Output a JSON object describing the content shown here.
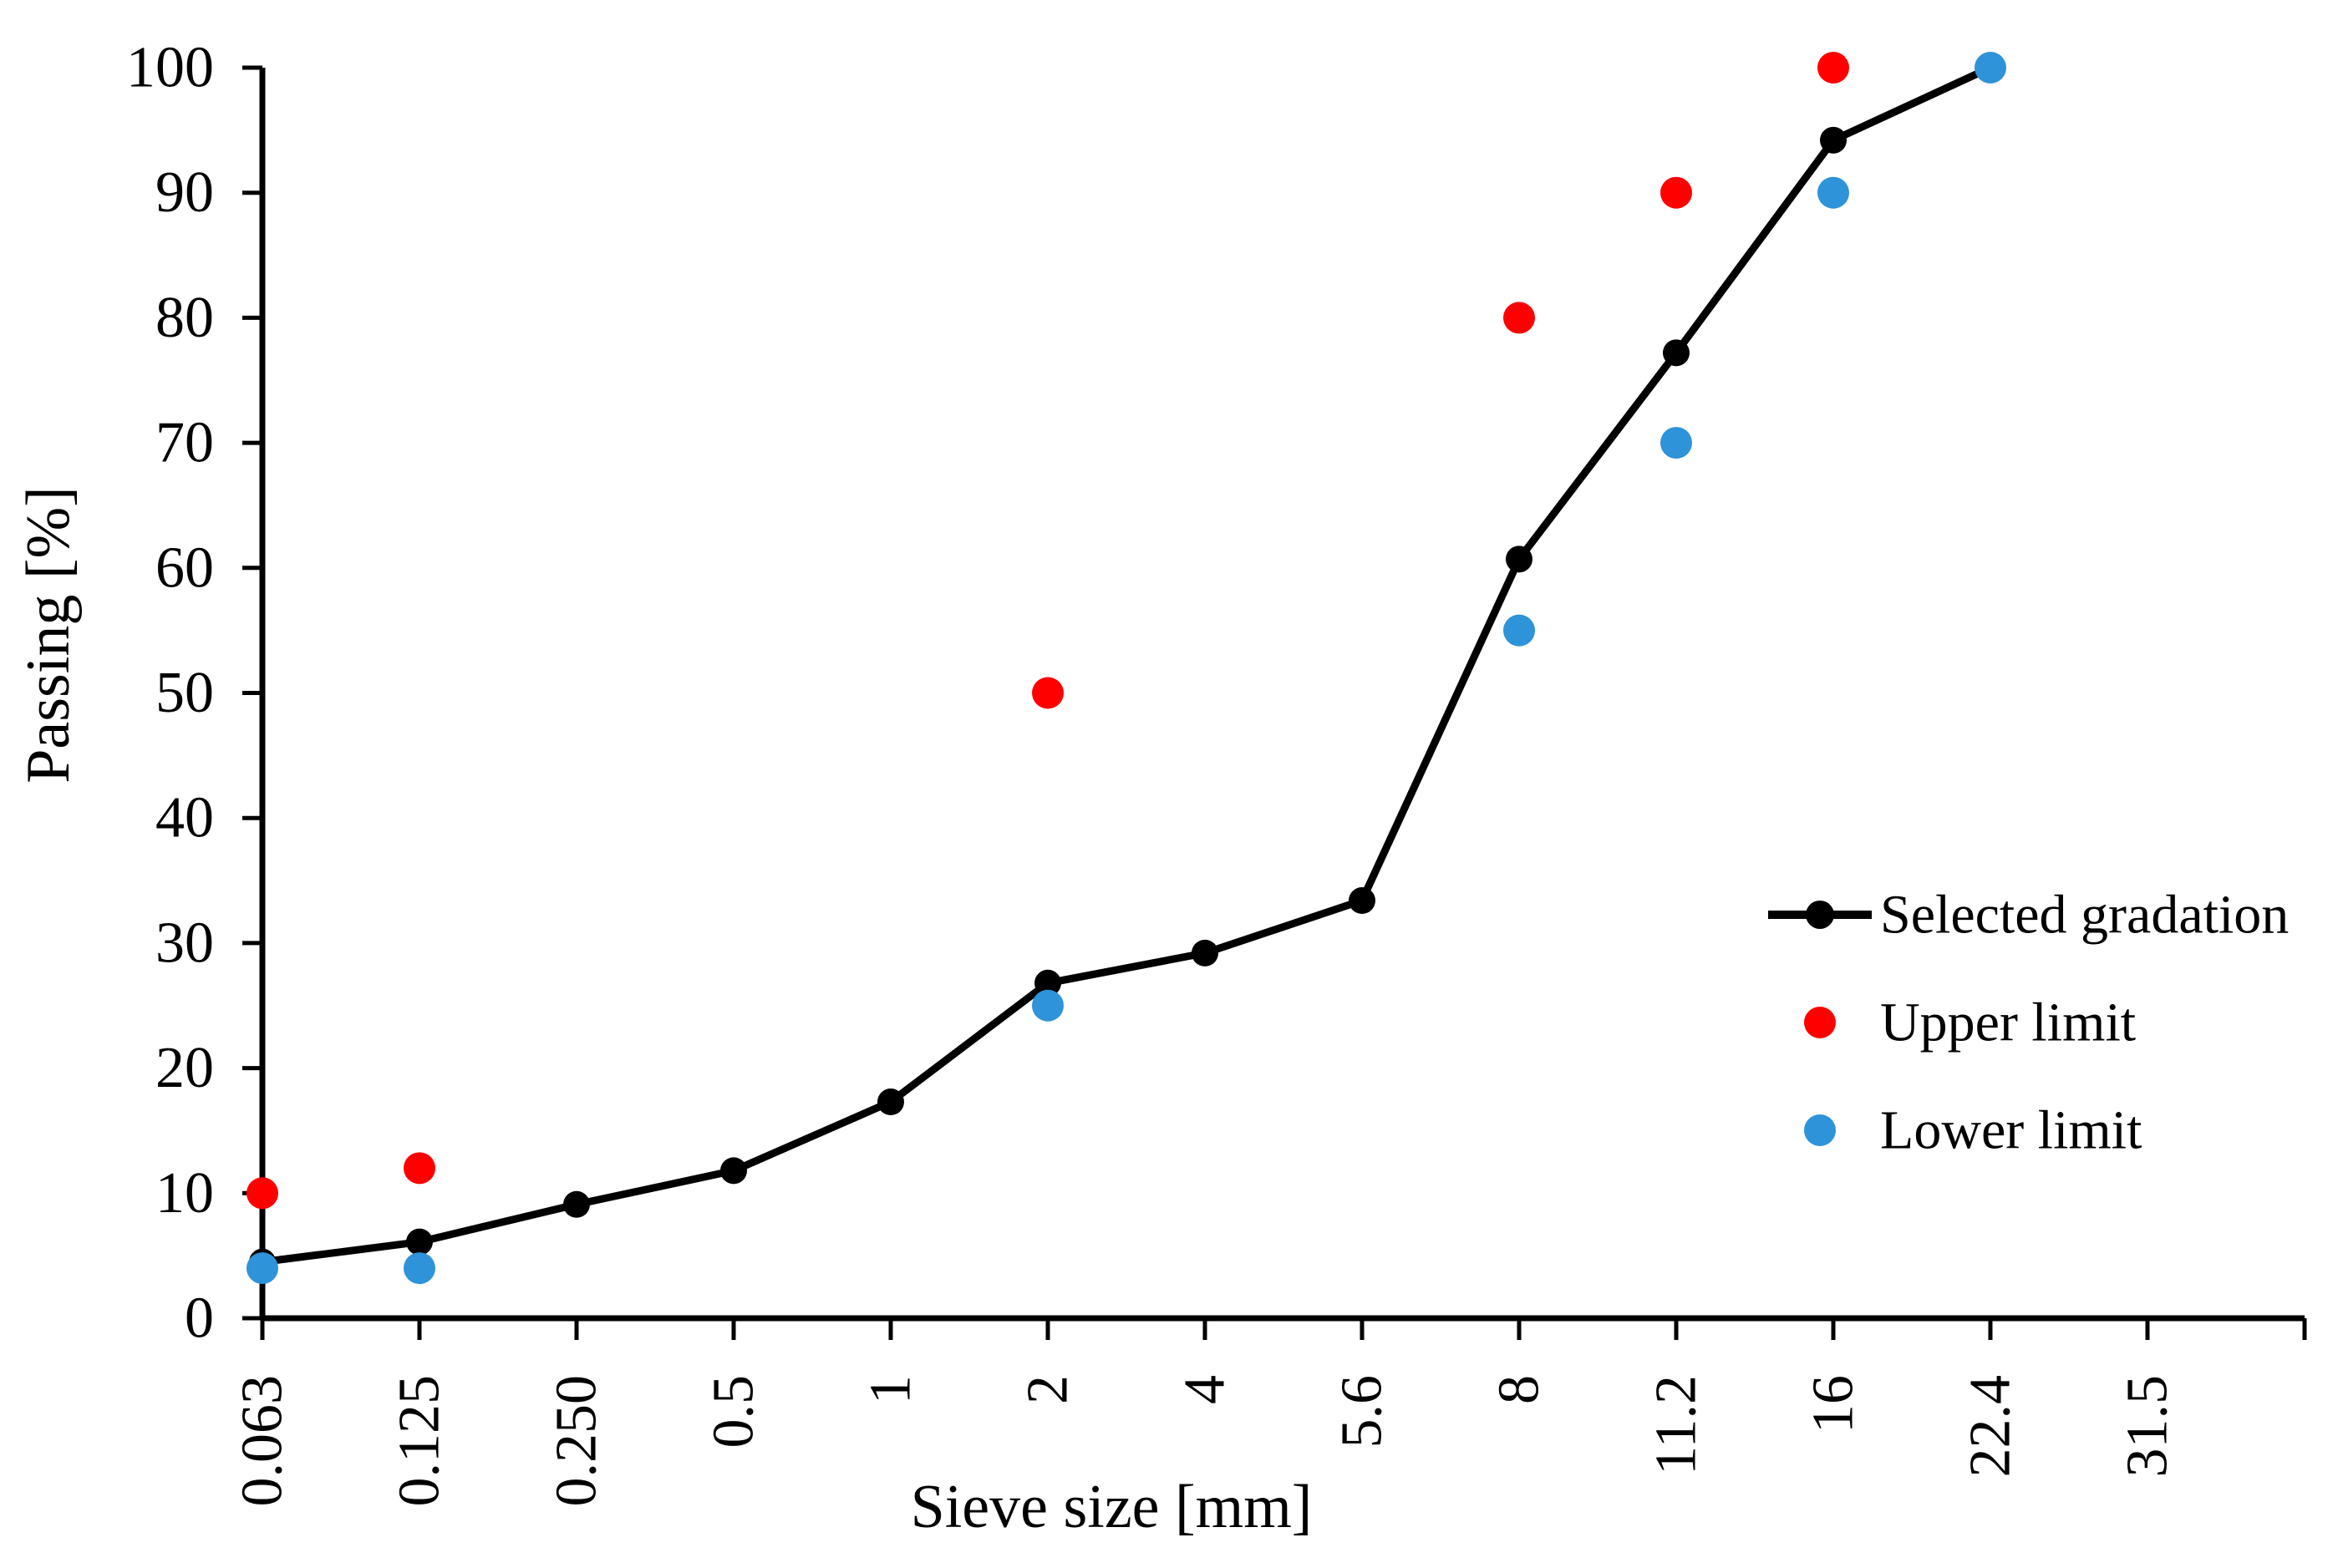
{
  "chart_data": {
    "type": "line",
    "title": "",
    "xlabel": "Sieve size [mm]",
    "ylabel": "Passing [%]",
    "categories": [
      "0.063",
      "0.125",
      "0.250",
      "0.5",
      "1",
      "2",
      "4",
      "5.6",
      "8",
      "11.2",
      "16",
      "22.4",
      "31.5"
    ],
    "y_axis": {
      "min": 0,
      "max": 100,
      "tick_step": 10,
      "tick_labels": [
        "0",
        "10",
        "20",
        "30",
        "40",
        "50",
        "60",
        "70",
        "80",
        "90",
        "100"
      ]
    },
    "series": [
      {
        "name": "Selected gradation",
        "style": "line-with-markers",
        "color": "#000000",
        "values": [
          4.5,
          6.1,
          9.1,
          11.8,
          17.3,
          26.8,
          29.2,
          33.4,
          60.7,
          77.2,
          94.2,
          100,
          null
        ]
      },
      {
        "name": "Upper limit",
        "style": "scatter",
        "color": "#FF0000",
        "values": [
          10,
          12,
          null,
          null,
          null,
          50,
          null,
          null,
          80,
          90,
          100,
          null,
          null
        ]
      },
      {
        "name": "Lower limit",
        "style": "scatter",
        "color": "#2E93D8",
        "values": [
          4,
          4,
          null,
          null,
          null,
          25,
          null,
          null,
          55,
          70,
          90,
          100,
          null
        ]
      }
    ],
    "legend": {
      "position": "middle-right"
    },
    "grid": false,
    "background": "#FFFFFF",
    "axis_color": "#000000"
  }
}
